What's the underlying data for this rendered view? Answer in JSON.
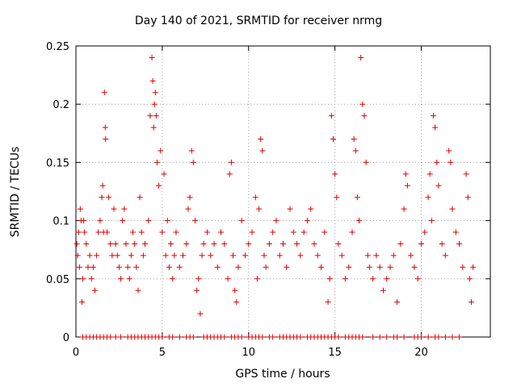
{
  "chart_data": {
    "type": "scatter",
    "title": "Day 140 of 2021, SRMTID for receiver nrmg",
    "xlabel": "GPS time / hours",
    "ylabel": "SRMTID / TECUs",
    "xlim": [
      0,
      24
    ],
    "ylim": [
      0,
      0.25
    ],
    "xticks": [
      0,
      5,
      10,
      15,
      20
    ],
    "yticks": [
      0,
      0.05,
      0.1,
      0.15,
      0.2,
      0.25
    ],
    "ytick_labels": [
      "0",
      "0.05",
      "0.1",
      "0.15",
      "0.2",
      "0.25"
    ],
    "grid": true,
    "marker": "+",
    "color": "#dd0000",
    "series": [
      {
        "name": "SRMTID",
        "points": [
          [
            0.05,
            0.08
          ],
          [
            0.1,
            0.07
          ],
          [
            0.15,
            0.09
          ],
          [
            0.2,
            0.06
          ],
          [
            0.25,
            0.11
          ],
          [
            0.3,
            0.1
          ],
          [
            0.35,
            0.03
          ],
          [
            0.4,
            0.05
          ],
          [
            0.45,
            0.1
          ],
          [
            0.5,
            0.09
          ],
          [
            0.6,
            0.08
          ],
          [
            0.7,
            0.06
          ],
          [
            0.8,
            0.07
          ],
          [
            0.9,
            0.05
          ],
          [
            1.0,
            0.06
          ],
          [
            1.1,
            0.04
          ],
          [
            1.2,
            0.07
          ],
          [
            1.3,
            0.09
          ],
          [
            1.4,
            0.1
          ],
          [
            1.5,
            0.12
          ],
          [
            1.55,
            0.13
          ],
          [
            1.6,
            0.09
          ],
          [
            1.65,
            0.21
          ],
          [
            1.7,
            0.18
          ],
          [
            1.72,
            0.17
          ],
          [
            1.8,
            0.09
          ],
          [
            1.9,
            0.12
          ],
          [
            2.0,
            0.08
          ],
          [
            2.1,
            0.07
          ],
          [
            2.2,
            0.11
          ],
          [
            2.3,
            0.08
          ],
          [
            2.4,
            0.07
          ],
          [
            2.5,
            0.06
          ],
          [
            2.6,
            0.05
          ],
          [
            2.7,
            0.1
          ],
          [
            2.8,
            0.11
          ],
          [
            2.9,
            0.08
          ],
          [
            3.0,
            0.06
          ],
          [
            3.1,
            0.05
          ],
          [
            3.2,
            0.07
          ],
          [
            3.3,
            0.09
          ],
          [
            3.4,
            0.08
          ],
          [
            3.5,
            0.06
          ],
          [
            3.6,
            0.04
          ],
          [
            3.7,
            0.12
          ],
          [
            3.8,
            0.09
          ],
          [
            3.9,
            0.07
          ],
          [
            4.0,
            0.08
          ],
          [
            4.2,
            0.1
          ],
          [
            4.3,
            0.19
          ],
          [
            4.4,
            0.24
          ],
          [
            4.45,
            0.22
          ],
          [
            4.5,
            0.18
          ],
          [
            4.55,
            0.2
          ],
          [
            4.6,
            0.21
          ],
          [
            4.65,
            0.19
          ],
          [
            4.7,
            0.15
          ],
          [
            4.8,
            0.13
          ],
          [
            4.9,
            0.16
          ],
          [
            5.0,
            0.09
          ],
          [
            5.1,
            0.14
          ],
          [
            5.2,
            0.07
          ],
          [
            5.3,
            0.1
          ],
          [
            5.4,
            0.06
          ],
          [
            5.5,
            0.08
          ],
          [
            5.6,
            0.05
          ],
          [
            5.7,
            0.07
          ],
          [
            5.8,
            0.09
          ],
          [
            6.0,
            0.06
          ],
          [
            6.2,
            0.07
          ],
          [
            6.4,
            0.08
          ],
          [
            6.5,
            0.11
          ],
          [
            6.6,
            0.12
          ],
          [
            6.7,
            0.16
          ],
          [
            6.8,
            0.15
          ],
          [
            6.9,
            0.1
          ],
          [
            7.0,
            0.04
          ],
          [
            7.1,
            0.05
          ],
          [
            7.2,
            0.02
          ],
          [
            7.3,
            0.07
          ],
          [
            7.4,
            0.08
          ],
          [
            7.6,
            0.09
          ],
          [
            7.8,
            0.07
          ],
          [
            8.0,
            0.08
          ],
          [
            8.2,
            0.06
          ],
          [
            8.4,
            0.09
          ],
          [
            8.6,
            0.08
          ],
          [
            8.8,
            0.05
          ],
          [
            8.9,
            0.14
          ],
          [
            9.0,
            0.15
          ],
          [
            9.1,
            0.07
          ],
          [
            9.2,
            0.04
          ],
          [
            9.3,
            0.03
          ],
          [
            9.4,
            0.06
          ],
          [
            9.6,
            0.1
          ],
          [
            9.8,
            0.07
          ],
          [
            10.0,
            0.08
          ],
          [
            10.2,
            0.09
          ],
          [
            10.4,
            0.12
          ],
          [
            10.5,
            0.05
          ],
          [
            10.6,
            0.11
          ],
          [
            10.7,
            0.17
          ],
          [
            10.8,
            0.16
          ],
          [
            10.9,
            0.07
          ],
          [
            11.0,
            0.06
          ],
          [
            11.2,
            0.08
          ],
          [
            11.4,
            0.09
          ],
          [
            11.6,
            0.1
          ],
          [
            11.8,
            0.07
          ],
          [
            12.0,
            0.08
          ],
          [
            12.2,
            0.06
          ],
          [
            12.4,
            0.11
          ],
          [
            12.6,
            0.09
          ],
          [
            12.8,
            0.08
          ],
          [
            13.0,
            0.07
          ],
          [
            13.2,
            0.09
          ],
          [
            13.4,
            0.1
          ],
          [
            13.6,
            0.11
          ],
          [
            13.8,
            0.08
          ],
          [
            14.0,
            0.07
          ],
          [
            14.2,
            0.06
          ],
          [
            14.4,
            0.09
          ],
          [
            14.6,
            0.03
          ],
          [
            14.7,
            0.05
          ],
          [
            14.8,
            0.19
          ],
          [
            14.9,
            0.17
          ],
          [
            15.0,
            0.14
          ],
          [
            15.1,
            0.12
          ],
          [
            15.2,
            0.08
          ],
          [
            15.4,
            0.07
          ],
          [
            15.6,
            0.05
          ],
          [
            15.8,
            0.06
          ],
          [
            16.0,
            0.09
          ],
          [
            16.1,
            0.17
          ],
          [
            16.2,
            0.16
          ],
          [
            16.3,
            0.12
          ],
          [
            16.4,
            0.1
          ],
          [
            16.5,
            0.24
          ],
          [
            16.6,
            0.2
          ],
          [
            16.7,
            0.19
          ],
          [
            16.8,
            0.15
          ],
          [
            16.9,
            0.07
          ],
          [
            17.0,
            0.06
          ],
          [
            17.2,
            0.05
          ],
          [
            17.4,
            0.07
          ],
          [
            17.6,
            0.06
          ],
          [
            17.8,
            0.04
          ],
          [
            18.0,
            0.05
          ],
          [
            18.2,
            0.06
          ],
          [
            18.4,
            0.07
          ],
          [
            18.6,
            0.03
          ],
          [
            18.8,
            0.08
          ],
          [
            19.0,
            0.11
          ],
          [
            19.1,
            0.14
          ],
          [
            19.2,
            0.13
          ],
          [
            19.4,
            0.07
          ],
          [
            19.6,
            0.06
          ],
          [
            19.8,
            0.05
          ],
          [
            20.0,
            0.08
          ],
          [
            20.2,
            0.09
          ],
          [
            20.4,
            0.12
          ],
          [
            20.5,
            0.14
          ],
          [
            20.6,
            0.1
          ],
          [
            20.7,
            0.19
          ],
          [
            20.8,
            0.18
          ],
          [
            20.9,
            0.15
          ],
          [
            21.0,
            0.13
          ],
          [
            21.2,
            0.08
          ],
          [
            21.4,
            0.07
          ],
          [
            21.6,
            0.16
          ],
          [
            21.7,
            0.15
          ],
          [
            21.8,
            0.11
          ],
          [
            22.0,
            0.09
          ],
          [
            22.2,
            0.08
          ],
          [
            22.4,
            0.06
          ],
          [
            22.6,
            0.14
          ],
          [
            22.7,
            0.12
          ],
          [
            22.8,
            0.05
          ],
          [
            22.9,
            0.03
          ],
          [
            23.0,
            0.06
          ]
        ],
        "zero_points": [
          0.4,
          0.6,
          0.8,
          1.0,
          1.2,
          1.4,
          1.6,
          1.8,
          2.0,
          2.3,
          2.6,
          3.0,
          3.2,
          3.4,
          3.6,
          3.8,
          4.0,
          4.2,
          4.4,
          4.6,
          4.8,
          5.0,
          5.4,
          5.6,
          6.0,
          6.4,
          6.6,
          6.8,
          7.4,
          7.6,
          7.8,
          8.0,
          8.2,
          8.4,
          8.6,
          9.0,
          9.2,
          9.4,
          9.6,
          10.0,
          10.2,
          10.4,
          10.6,
          10.8,
          11.2,
          11.4,
          11.8,
          12.0,
          12.2,
          12.4,
          12.6,
          12.8,
          13.0,
          13.4,
          13.6,
          13.8,
          14.0,
          14.2,
          14.4,
          14.6,
          14.8,
          15.0,
          15.2,
          15.6,
          15.8,
          16.0,
          16.2,
          16.4,
          16.6,
          17.2,
          17.6,
          18.0,
          18.4,
          18.6,
          19.0,
          19.6,
          19.8,
          20.0,
          20.4,
          20.8,
          21.0,
          21.4,
          21.8,
          22.2
        ]
      }
    ]
  }
}
